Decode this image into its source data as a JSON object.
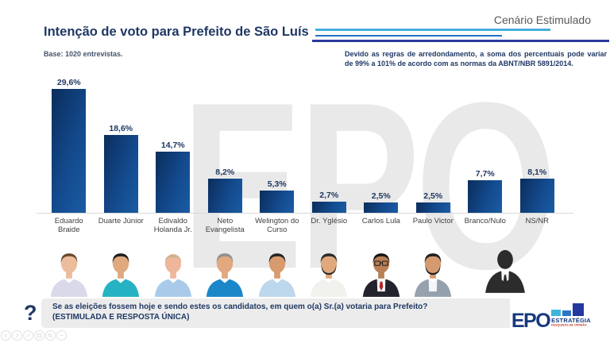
{
  "slide": {
    "scenario_label": "Cenário Estimulado",
    "title": "Intenção de voto para Prefeito de São Luís",
    "base_note": "Base: 1020 entrevistas.",
    "rounding_note": "Devido as regras de arredondamento, a soma dos percentuais pode variar de 99% a 101% de acordo com as normas da ABNT/NBR 5891/2014.",
    "watermark": "EPO"
  },
  "chart_data": {
    "type": "bar",
    "title": "Intenção de voto para Prefeito de São Luís",
    "categories": [
      "Eduardo Braide",
      "Duarte Júnior",
      "Edivaldo Holanda Jr.",
      "Neto Evangelista",
      "Welington do Curso",
      "Dr. Yglésio",
      "Carlos Lula",
      "Paulo Victor",
      "Branco/Nulo",
      "NS/NR"
    ],
    "values": [
      29.6,
      18.6,
      14.7,
      8.2,
      5.3,
      2.7,
      2.5,
      2.5,
      7.7,
      8.1
    ],
    "value_labels": [
      "29,6%",
      "18,6%",
      "14,7%",
      "8,2%",
      "5,3%",
      "2,7%",
      "2,5%",
      "2,5%",
      "7,7%",
      "8,1%"
    ],
    "xlabel": "",
    "ylabel": "",
    "ylim": [
      0,
      32
    ],
    "grid": false,
    "legend": "none",
    "bar_gradient": [
      "#0b2d5b",
      "#1a5ca4"
    ],
    "value_label_color": "#1f3864"
  },
  "candidates": [
    {
      "name": "Eduardo Braide",
      "avatar": {
        "skin": "#ecbd9d",
        "hair": "#6b4a2f",
        "shirt": "#d9d9ea",
        "bald": false,
        "beard": false,
        "glasses": false,
        "suit": false,
        "tie": ""
      }
    },
    {
      "name": "Duarte Júnior",
      "avatar": {
        "skin": "#e0a97e",
        "hair": "#1e1e1e",
        "shirt": "#25b3c4",
        "bald": false,
        "beard": false,
        "glasses": false,
        "suit": false,
        "tie": ""
      }
    },
    {
      "name": "Edivaldo Holanda Jr.",
      "avatar": {
        "skin": "#eeb79b",
        "hair": "#c9b68f",
        "shirt": "#a9cbe9",
        "bald": true,
        "beard": false,
        "glasses": false,
        "suit": false,
        "tie": ""
      }
    },
    {
      "name": "Neto Evangelista",
      "avatar": {
        "skin": "#e2a87f",
        "hair": "#8f8f8f",
        "shirt": "#1b86c8",
        "bald": false,
        "beard": false,
        "glasses": false,
        "suit": false,
        "tie": ""
      }
    },
    {
      "name": "Welington do Curso",
      "avatar": {
        "skin": "#d89a6e",
        "hair": "#252525",
        "shirt": "#bdd7ec",
        "bald": false,
        "beard": false,
        "glasses": false,
        "suit": false,
        "tie": ""
      }
    },
    {
      "name": "Dr. Yglésio",
      "avatar": {
        "skin": "#e0a87c",
        "hair": "#2b2b2b",
        "shirt": "#f1f1ee",
        "bald": false,
        "beard": true,
        "glasses": false,
        "suit": false,
        "tie": ""
      }
    },
    {
      "name": "Carlos Lula",
      "avatar": {
        "skin": "#b97f55",
        "hair": "#151515",
        "shirt": "#23232d",
        "bald": false,
        "beard": false,
        "glasses": true,
        "suit": true,
        "tie": "#b22222"
      }
    },
    {
      "name": "Paulo Victor",
      "avatar": {
        "skin": "#d59a70",
        "hair": "#1f1f1f",
        "shirt": "#95a2ae",
        "bald": false,
        "beard": true,
        "glasses": false,
        "suit": true,
        "tie": ""
      }
    }
  ],
  "silhouette_color": "#2c2c2c",
  "question": {
    "icon": "?",
    "line1": "Se as eleições fossem hoje e sendo estes os candidatos, em quem o(a) Sr.(a) votaria para Prefeito?",
    "line2": "(ESTIMULADA E RESPOSTA ÚNICA)"
  },
  "logo": {
    "name": "EPO",
    "subtitle": "ESTRATÉGIA",
    "tagline": "PESQUISAS DE OPINIÃO",
    "colors": {
      "navy": "#16387f",
      "cyan": "#3fb5dd",
      "blue": "#2e75c6",
      "dark": "#2438a0",
      "red": "#c0392b"
    }
  },
  "controls": [
    "previous-slide",
    "next-slide",
    "pen-tool",
    "see-all-slides",
    "zoom-tool",
    "more-options"
  ],
  "colors": {
    "title": "#1f3864",
    "scenario": "#595959",
    "rule_cyan": "#41b0dc",
    "rule_blue": "#2272c3",
    "rule_navy": "#2b3a9a",
    "axis": "#d9d9d9",
    "category_label": "#3f3f3f",
    "question_bg": "#ececec",
    "watermark": "#e9e9e9"
  }
}
